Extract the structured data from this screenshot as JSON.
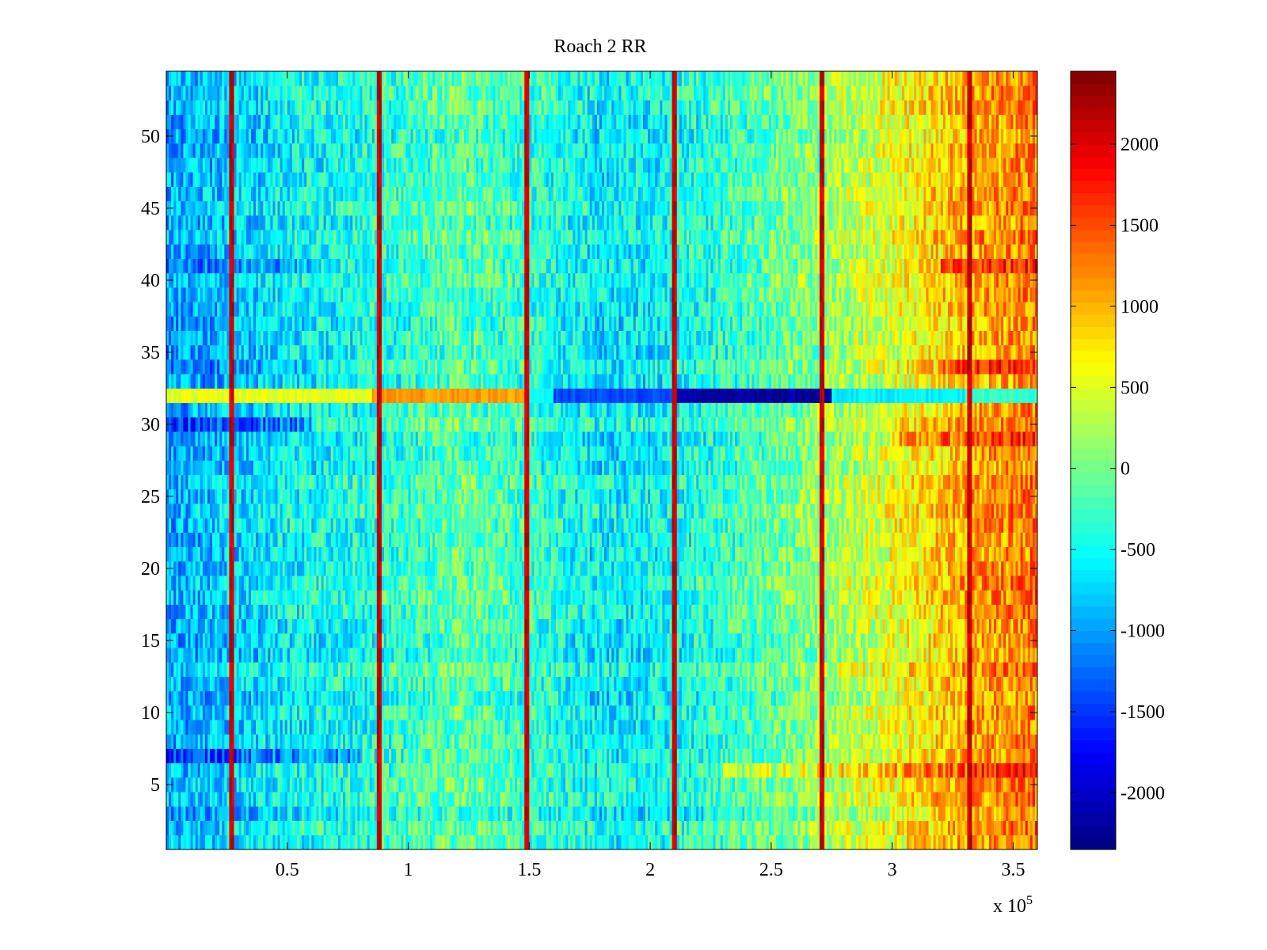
{
  "chart_data": {
    "type": "heatmap",
    "title": "Roach 2 RR",
    "xlabel": "",
    "ylabel": "",
    "x_multiplier_label": {
      "prefix": "x 10",
      "exponent": "5"
    },
    "xlim": [
      0,
      3.6
    ],
    "ylim": [
      0.5,
      54.5
    ],
    "rows": 54,
    "columns": 360,
    "x_ticks": [
      {
        "value": 0.5,
        "label": "0.5"
      },
      {
        "value": 1,
        "label": "1"
      },
      {
        "value": 1.5,
        "label": "1.5"
      },
      {
        "value": 2,
        "label": "2"
      },
      {
        "value": 2.5,
        "label": "2.5"
      },
      {
        "value": 3,
        "label": "3"
      },
      {
        "value": 3.5,
        "label": "3.5"
      }
    ],
    "y_ticks": [
      {
        "value": 5,
        "label": "5"
      },
      {
        "value": 10,
        "label": "10"
      },
      {
        "value": 15,
        "label": "15"
      },
      {
        "value": 20,
        "label": "20"
      },
      {
        "value": 25,
        "label": "25"
      },
      {
        "value": 30,
        "label": "30"
      },
      {
        "value": 35,
        "label": "35"
      },
      {
        "value": 40,
        "label": "40"
      },
      {
        "value": 45,
        "label": "45"
      },
      {
        "value": 50,
        "label": "50"
      }
    ],
    "colorbar": {
      "colormap": "jet",
      "range": [
        -2350,
        2450
      ],
      "ticks": [
        {
          "value": -2000,
          "label": "-2000"
        },
        {
          "value": -1500,
          "label": "-1500"
        },
        {
          "value": -1000,
          "label": "-1000"
        },
        {
          "value": -500,
          "label": "-500"
        },
        {
          "value": 0,
          "label": "0"
        },
        {
          "value": 500,
          "label": "500"
        },
        {
          "value": 1000,
          "label": "1000"
        },
        {
          "value": 1500,
          "label": "1500"
        },
        {
          "value": 2000,
          "label": "2000"
        }
      ]
    },
    "trend_profile_x": [
      0,
      0.25,
      0.5,
      0.87,
      1.2,
      1.5,
      1.8,
      2.1,
      2.4,
      2.7,
      3.0,
      3.3,
      3.6
    ],
    "trend_profile_value": [
      -950,
      -800,
      -550,
      -400,
      -100,
      -300,
      -600,
      -500,
      -200,
      150,
      550,
      1050,
      1300
    ],
    "vertical_stripes_x": [
      0.27,
      0.88,
      1.49,
      2.1,
      2.71,
      3.32
    ],
    "vertical_stripe_value": 2100,
    "anomalous_row": {
      "row": 32,
      "segments": [
        {
          "x_start": 0,
          "x_end": 0.85,
          "value": 550
        },
        {
          "x_start": 0.85,
          "x_end": 1.5,
          "value": 1100
        },
        {
          "x_start": 1.6,
          "x_end": 2.1,
          "value": -1400
        },
        {
          "x_start": 2.1,
          "x_end": 2.75,
          "value": -2200
        },
        {
          "x_start": 2.75,
          "x_end": 3.3,
          "value": -600
        },
        {
          "x_start": 3.3,
          "x_end": 3.6,
          "value": -300
        }
      ]
    },
    "row_offsets": [
      {
        "row": 6,
        "x_start": 2.3,
        "x_end": 3.6,
        "value": 400
      },
      {
        "row": 7,
        "x_start": 0,
        "x_end": 0.8,
        "value": -500
      },
      {
        "row": 30,
        "x_start": 0,
        "x_end": 0.6,
        "value": -700
      },
      {
        "row": 29,
        "x_start": 3.0,
        "x_end": 3.6,
        "value": 500
      },
      {
        "row": 34,
        "x_start": 0,
        "x_end": 0.6,
        "value": -300
      },
      {
        "row": 34,
        "x_start": 3.2,
        "x_end": 3.6,
        "value": 500
      },
      {
        "row": 41,
        "x_start": 0,
        "x_end": 0.6,
        "value": -350
      },
      {
        "row": 41,
        "x_start": 3.2,
        "x_end": 3.6,
        "value": 500
      }
    ]
  }
}
